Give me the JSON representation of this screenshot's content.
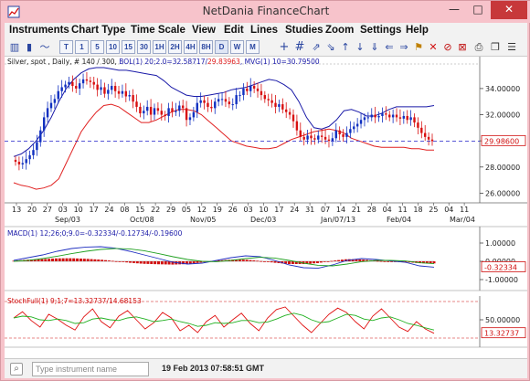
{
  "window": {
    "title": "NetDania FinanceChart",
    "min_glyph": "—",
    "max_glyph": "□",
    "close_glyph": "✕"
  },
  "menu": [
    "Instruments",
    "Chart Type",
    "Time Scale",
    "View",
    "Edit",
    "Lines",
    "Studies",
    "Zoom",
    "Settings",
    "Help"
  ],
  "toolbar": {
    "intervals": [
      "T",
      "1",
      "5",
      "10",
      "15",
      "30",
      "1H",
      "2H",
      "4H",
      "8H",
      "D",
      "W",
      "M"
    ],
    "selected_interval": "D",
    "icons": [
      "bar-chart-icon",
      "candle-chart-icon",
      "line-chart-icon",
      "crosshair-icon",
      "grid-icon",
      "arrow-buy-icon",
      "arrow-sell-icon",
      "arrow-up-icon",
      "arrow-down-icon",
      "arrow-down-alt-icon",
      "flag-icon",
      "delete-icon",
      "ruler-icon",
      "print-icon",
      "copy-icon",
      "properties-icon"
    ]
  },
  "main_panel": {
    "info": "Silver, spot , Daily, # 140 / 300, BOL(1) 20;2.0=32.58717/29.83963, MVG(1) 10=30.79500",
    "info_parts": {
      "prefix": "Silver, spot , Daily, # 140 / 300, ",
      "bol_label": "BOL(1) 20;2.0=",
      "bol_upper": "32.58717",
      "bol_sep": "/",
      "bol_lower": "29.83963",
      "mvg": ", MVG(1) 10=30.79500"
    },
    "last_price": "29.98600",
    "y_ticks": [
      "34.00000",
      "32.00000",
      "30.00000",
      "28.00000",
      "26.00000"
    ],
    "y_range": [
      25.4,
      35.6
    ]
  },
  "x_axis": {
    "day_labels": [
      "13",
      "20",
      "27",
      "03",
      "10",
      "17",
      "24",
      "08",
      "15",
      "22",
      "29",
      "05",
      "12",
      "19",
      "26",
      "03",
      "10",
      "17",
      "24",
      "31",
      "07",
      "14",
      "21",
      "28",
      "04",
      "11",
      "18",
      "25",
      "04",
      "11"
    ],
    "month_labels": [
      "Sep/03",
      "Oct/08",
      "Nov/05",
      "Dec/03",
      "Jan/07/13",
      "Feb/04",
      "Mar/04"
    ]
  },
  "macd_panel": {
    "info": "MACD(1) 12;26;0;9.0=-0.32334/-0.12734/-0.19600",
    "y_ticks": [
      "1.00000",
      "0.00000",
      "-1.00000"
    ],
    "last_value": "-0.32334",
    "y_range": [
      -1.4,
      1.4
    ]
  },
  "stoch_panel": {
    "info": "StochFull(1) 9;1;7=13.32737/14.68153",
    "y_ticks": [
      "50.00000"
    ],
    "last_value": "13.32737",
    "y_range": [
      0,
      100
    ]
  },
  "colors": {
    "upper_band": "#1a1aa8",
    "lower_band": "#e02020",
    "candle_down": "#d81010",
    "candle_up": "#1030c0",
    "last_price_line": "#2020c8",
    "stoch_k": "#e01010",
    "stoch_d": "#20b020",
    "macd_line": "#2030c0",
    "macd_signal": "#20a020"
  },
  "status": {
    "placeholder": "Type instrument name",
    "time": "19 Feb 2013 07:58:51 GMT"
  },
  "chart_data": {
    "type": "candlestick",
    "title": "Silver, spot , Daily",
    "x_period_labels": [
      "Sep/03",
      "Oct/08",
      "Nov/05",
      "Dec/03",
      "Jan/07/13",
      "Feb/04",
      "Mar/04"
    ],
    "close": [
      28.4,
      28.2,
      28.3,
      28.6,
      28.9,
      29.3,
      29.9,
      30.8,
      31.8,
      32.5,
      32.9,
      33.2,
      33.8,
      34.1,
      34.3,
      34.5,
      34.2,
      34.0,
      34.4,
      34.7,
      34.6,
      34.5,
      34.3,
      33.9,
      34.1,
      33.6,
      33.9,
      34.2,
      33.8,
      33.6,
      33.8,
      33.4,
      33.5,
      33.0,
      32.6,
      32.1,
      32.3,
      32.6,
      32.0,
      32.5,
      32.3,
      32.0,
      31.9,
      32.5,
      32.2,
      32.3,
      32.7,
      32.5,
      31.6,
      31.8,
      32.2,
      32.9,
      33.1,
      32.9,
      32.6,
      32.5,
      33.0,
      33.2,
      33.2,
      33.0,
      32.8,
      32.8,
      33.5,
      33.5,
      34.0,
      33.8,
      34.2,
      34.0,
      33.8,
      33.5,
      33.2,
      33.1,
      32.9,
      32.6,
      32.8,
      32.4,
      32.2,
      32.0,
      31.5,
      30.8,
      30.3,
      30.1,
      30.4,
      30.2,
      30.1,
      30.4,
      30.3,
      30.1,
      30.0,
      30.2,
      30.8,
      30.5,
      30.3,
      30.6,
      30.9,
      31.1,
      31.3,
      31.6,
      31.8,
      31.8,
      32.0,
      31.8,
      31.9,
      32.1,
      32.0,
      31.8,
      32.0,
      31.8,
      31.7,
      31.9,
      31.6,
      31.8,
      31.4,
      31.0,
      30.6,
      30.3,
      30.1,
      29.98
    ],
    "upper_band": [
      28.8,
      29.0,
      29.4,
      30.0,
      30.8,
      31.8,
      33.0,
      34.0,
      34.7,
      35.2,
      35.5,
      35.6,
      35.6,
      35.5,
      35.4,
      35.4,
      35.3,
      35.2,
      35.1,
      35.0,
      34.6,
      34.1,
      33.8,
      33.5,
      33.4,
      33.4,
      33.5,
      33.6,
      33.7,
      33.9,
      34.0,
      34.1,
      34.3,
      34.5,
      34.7,
      34.6,
      34.3,
      33.9,
      33.0,
      31.8,
      31.0,
      30.9,
      31.1,
      31.6,
      32.3,
      32.4,
      32.2,
      31.9,
      31.9,
      32.1,
      32.4,
      32.6,
      32.6,
      32.6,
      32.6,
      32.6,
      32.7
    ],
    "lower_band": [
      26.8,
      26.6,
      26.5,
      26.3,
      26.4,
      26.6,
      27.1,
      28.3,
      29.5,
      30.7,
      31.5,
      32.2,
      32.7,
      32.8,
      32.6,
      32.2,
      31.8,
      31.4,
      31.4,
      31.6,
      31.9,
      32.2,
      32.4,
      32.4,
      32.3,
      32.0,
      31.5,
      31.0,
      30.5,
      30.0,
      29.8,
      29.6,
      29.5,
      29.4,
      29.4,
      29.5,
      29.8,
      30.1,
      30.3,
      30.5,
      30.7,
      30.8,
      30.9,
      30.8,
      30.6,
      30.2,
      30.0,
      29.8,
      29.6,
      29.5,
      29.5,
      29.5,
      29.5,
      29.4,
      29.4,
      29.3,
      29.3
    ],
    "macd": [
      0.05,
      0.2,
      0.35,
      0.55,
      0.7,
      0.78,
      0.8,
      0.72,
      0.55,
      0.35,
      0.15,
      -0.05,
      -0.15,
      -0.1,
      0.05,
      0.2,
      0.3,
      0.25,
      0.05,
      -0.2,
      -0.35,
      -0.38,
      -0.2,
      0.05,
      0.15,
      0.1,
      0.02,
      -0.05,
      -0.25,
      -0.32
    ],
    "macd_signal": [
      0.0,
      0.05,
      0.15,
      0.28,
      0.42,
      0.55,
      0.65,
      0.7,
      0.68,
      0.58,
      0.42,
      0.25,
      0.1,
      0.0,
      -0.02,
      0.05,
      0.15,
      0.22,
      0.18,
      0.05,
      -0.1,
      -0.22,
      -0.25,
      -0.15,
      -0.02,
      0.05,
      0.05,
      0.02,
      -0.08,
      -0.13
    ],
    "stoch_k": [
      55,
      72,
      48,
      30,
      65,
      52,
      35,
      22,
      58,
      80,
      45,
      28,
      60,
      75,
      50,
      25,
      42,
      70,
      55,
      20,
      35,
      15,
      45,
      62,
      30,
      50,
      68,
      40,
      20,
      55,
      78,
      85,
      60,
      35,
      15,
      40,
      65,
      82,
      70,
      45,
      25,
      60,
      80,
      55,
      30,
      18,
      45,
      25,
      13
    ],
    "stoch_d": [
      55,
      60,
      58,
      50,
      48,
      52,
      48,
      40,
      42,
      52,
      55,
      50,
      48,
      55,
      58,
      52,
      45,
      48,
      52,
      45,
      40,
      32,
      35,
      42,
      40,
      42,
      48,
      48,
      42,
      44,
      52,
      62,
      68,
      62,
      50,
      42,
      45,
      55,
      65,
      62,
      52,
      48,
      55,
      58,
      50,
      40,
      35,
      28,
      22
    ]
  }
}
